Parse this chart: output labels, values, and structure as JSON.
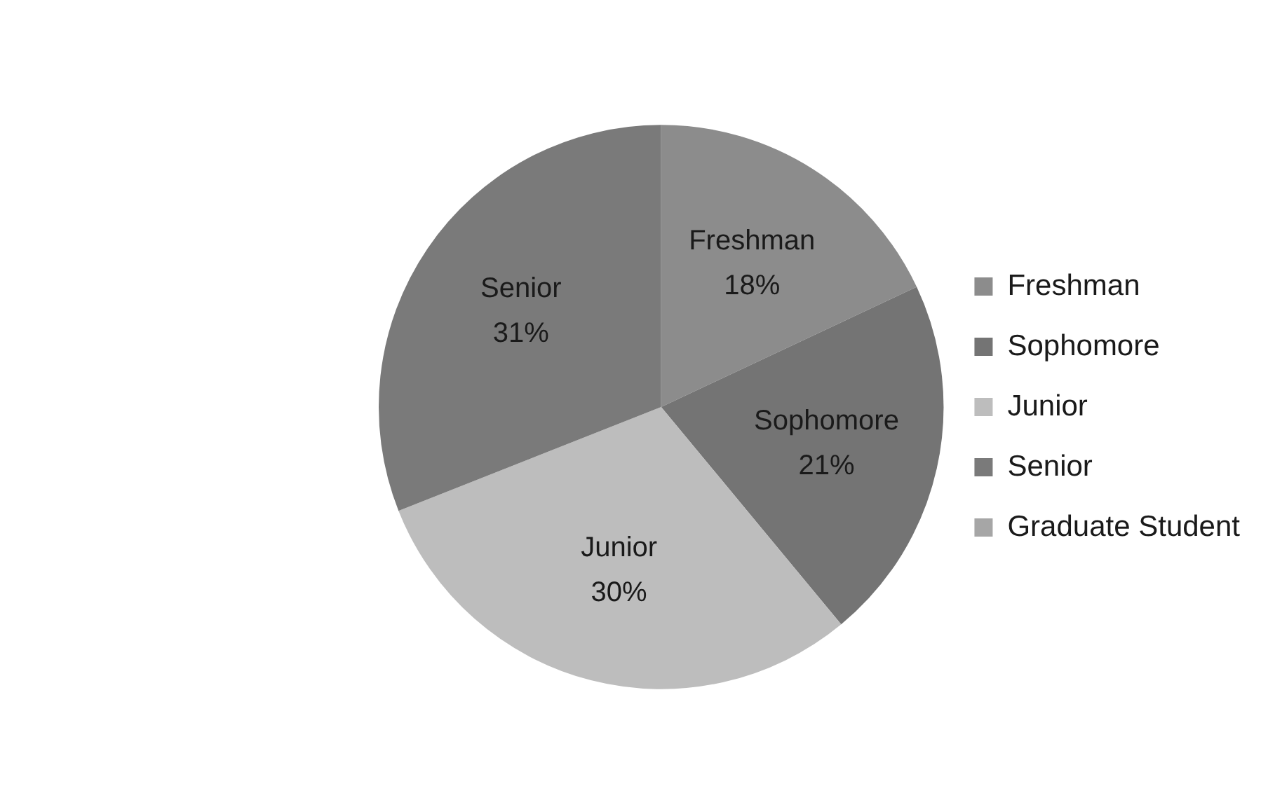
{
  "chart_data": {
    "type": "pie",
    "categories": [
      "Freshman",
      "Sophomore",
      "Junior",
      "Senior",
      "Graduate Student"
    ],
    "values": [
      18,
      21,
      30,
      31,
      0
    ],
    "colors": [
      "#8c8c8c",
      "#747474",
      "#bdbdbd",
      "#7a7a7a",
      "#a6a6a6"
    ],
    "value_labels": [
      "18%",
      "21%",
      "30%",
      "31%",
      null
    ],
    "legend": "right"
  }
}
